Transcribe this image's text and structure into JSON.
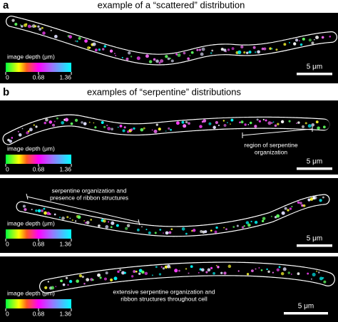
{
  "panel_a": {
    "letter": "a",
    "title": "example of a “scattered” distribution",
    "colorbar": {
      "label": "image depth (μm)",
      "ticks": [
        0,
        0.68,
        1.36
      ]
    },
    "scale_bar": "5 μm"
  },
  "panel_b": {
    "letter": "b",
    "title": "examples of “serpentine” distributions",
    "images": [
      {
        "colorbar": {
          "label": "image depth (μm)",
          "ticks": [
            0,
            0.68,
            1.36
          ]
        },
        "scale_bar": "5 μm",
        "annotation": [
          "region of serpentine",
          "organization"
        ]
      },
      {
        "colorbar": {
          "label": "image depth (μm)",
          "ticks": [
            0,
            0.68,
            1.36
          ]
        },
        "scale_bar": "5 μm",
        "annotation": [
          "serpentine organization and",
          "presence of ribbon structures"
        ]
      },
      {
        "colorbar": {
          "label": "image depth (μm)",
          "ticks": [
            0,
            0.68,
            1.36
          ]
        },
        "scale_bar": "5 μm",
        "annotation": [
          "extensive serpentine organization and",
          "ribbon structures throughout cell"
        ]
      }
    ]
  }
}
